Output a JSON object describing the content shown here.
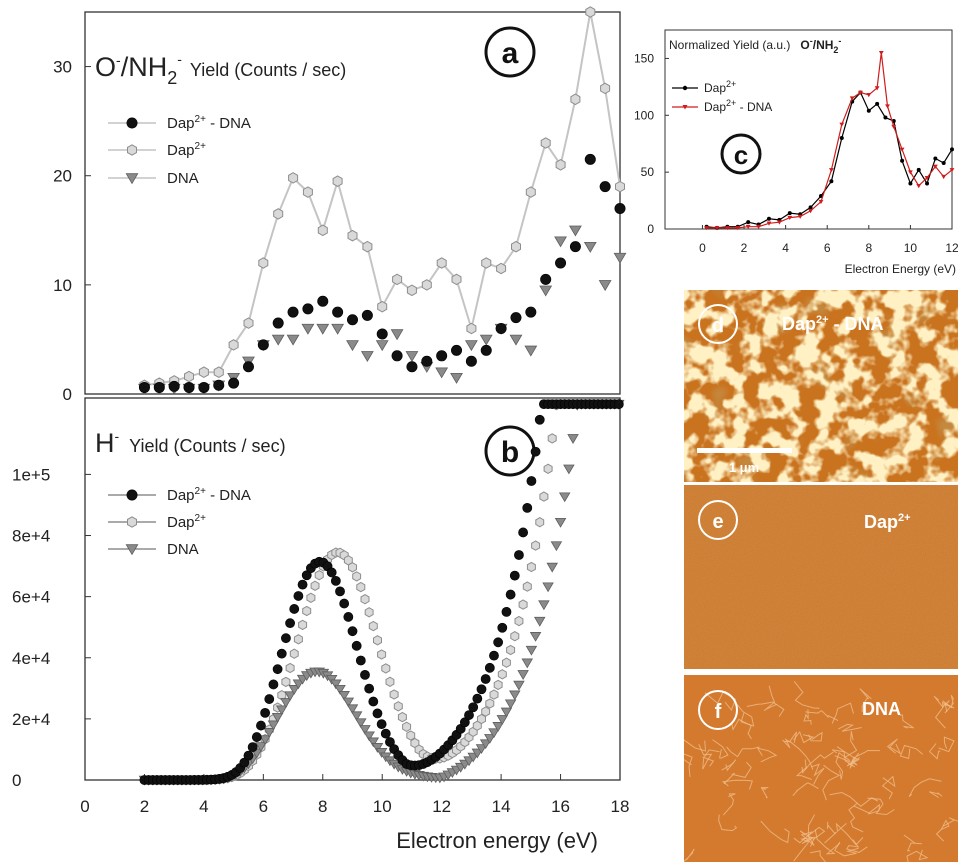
{
  "colors": {
    "dap_dna": "#111111",
    "dap": "#bdbdbd",
    "dna": "#8a8a8a",
    "inset_dap": "#000000",
    "inset_dap_dna": "#d01c1c",
    "afm_d": "#c9731f",
    "afm_e": "#d9873a",
    "afm_f": "#d37a2f"
  },
  "chart_data": [
    {
      "type": "scatter",
      "panel": "a",
      "panel_label": "a",
      "title_main": "O",
      "title_sup1": "-",
      "title_mid": "/NH",
      "title_sub": "2",
      "title_sup2": "-",
      "title_rest": "Yield (Counts / sec)",
      "ylim": [
        0,
        35
      ],
      "yticks": [
        0,
        10,
        20,
        30
      ],
      "xlim": [
        0,
        18
      ],
      "legend": [
        {
          "base": "Dap",
          "sup": "2+",
          "suffix": " - DNA"
        },
        {
          "base": "Dap",
          "sup": "2+",
          "suffix": ""
        },
        {
          "base": "DNA",
          "sup": "",
          "suffix": ""
        }
      ],
      "series": [
        {
          "name": "Dap2+ - DNA",
          "points": [
            [
              2.0,
              0.6
            ],
            [
              2.5,
              0.6
            ],
            [
              3.0,
              0.7
            ],
            [
              3.5,
              0.6
            ],
            [
              4.0,
              0.6
            ],
            [
              4.5,
              0.8
            ],
            [
              5.0,
              1.0
            ],
            [
              5.5,
              2.5
            ],
            [
              6.0,
              4.5
            ],
            [
              6.5,
              6.5
            ],
            [
              7.0,
              7.5
            ],
            [
              7.5,
              7.8
            ],
            [
              8.0,
              8.5
            ],
            [
              8.5,
              7.5
            ],
            [
              9.0,
              6.8
            ],
            [
              9.5,
              7.2
            ],
            [
              10.0,
              5.5
            ],
            [
              10.5,
              3.5
            ],
            [
              11.0,
              2.5
            ],
            [
              11.5,
              3.0
            ],
            [
              12.0,
              3.5
            ],
            [
              12.5,
              4.0
            ],
            [
              13.0,
              3.0
            ],
            [
              13.5,
              4.0
            ],
            [
              14.0,
              6.0
            ],
            [
              14.5,
              7.0
            ],
            [
              15.0,
              7.5
            ],
            [
              15.5,
              10.5
            ],
            [
              16.0,
              12.0
            ],
            [
              16.5,
              13.5
            ],
            [
              17.0,
              21.5
            ],
            [
              17.5,
              19.0
            ],
            [
              18.0,
              17.0
            ]
          ]
        },
        {
          "name": "Dap2+",
          "points": [
            [
              2.0,
              0.8
            ],
            [
              2.5,
              1.0
            ],
            [
              3.0,
              1.2
            ],
            [
              3.5,
              1.6
            ],
            [
              4.0,
              2.0
            ],
            [
              4.5,
              2.0
            ],
            [
              5.0,
              4.5
            ],
            [
              5.5,
              6.5
            ],
            [
              6.0,
              12.0
            ],
            [
              6.5,
              16.5
            ],
            [
              7.0,
              19.8
            ],
            [
              7.5,
              18.5
            ],
            [
              8.0,
              15.0
            ],
            [
              8.5,
              19.5
            ],
            [
              9.0,
              14.5
            ],
            [
              9.5,
              13.5
            ],
            [
              10.0,
              8.0
            ],
            [
              10.5,
              10.5
            ],
            [
              11.0,
              9.5
            ],
            [
              11.5,
              10.0
            ],
            [
              12.0,
              12.0
            ],
            [
              12.5,
              10.5
            ],
            [
              13.0,
              6.0
            ],
            [
              13.5,
              12.0
            ],
            [
              14.0,
              11.5
            ],
            [
              14.5,
              13.5
            ],
            [
              15.0,
              18.5
            ],
            [
              15.5,
              23.0
            ],
            [
              16.0,
              21.0
            ],
            [
              16.5,
              27.0
            ],
            [
              17.0,
              35.0
            ],
            [
              17.5,
              28.0
            ],
            [
              18.0,
              19.0
            ]
          ]
        },
        {
          "name": "DNA",
          "points": [
            [
              2.0,
              0.5
            ],
            [
              2.5,
              0.5
            ],
            [
              3.0,
              0.5
            ],
            [
              3.5,
              0.5
            ],
            [
              4.0,
              0.5
            ],
            [
              4.5,
              0.8
            ],
            [
              5.0,
              1.5
            ],
            [
              5.5,
              3.0
            ],
            [
              6.0,
              4.5
            ],
            [
              6.5,
              5.0
            ],
            [
              7.0,
              5.0
            ],
            [
              7.5,
              6.0
            ],
            [
              8.0,
              6.0
            ],
            [
              8.5,
              6.0
            ],
            [
              9.0,
              4.5
            ],
            [
              9.5,
              3.5
            ],
            [
              10.0,
              4.5
            ],
            [
              10.5,
              5.5
            ],
            [
              11.0,
              3.5
            ],
            [
              11.5,
              2.5
            ],
            [
              12.0,
              2.0
            ],
            [
              12.5,
              1.5
            ],
            [
              13.0,
              4.5
            ],
            [
              13.5,
              5.0
            ],
            [
              14.0,
              6.0
            ],
            [
              14.5,
              5.0
            ],
            [
              15.0,
              4.0
            ],
            [
              15.5,
              9.5
            ],
            [
              16.0,
              14.0
            ],
            [
              16.5,
              15.0
            ],
            [
              17.0,
              13.5
            ],
            [
              17.5,
              10.0
            ],
            [
              18.0,
              12.5
            ]
          ]
        }
      ]
    },
    {
      "type": "scatter",
      "panel": "b",
      "panel_label": "b",
      "title_main": "H",
      "title_sup1": "-",
      "title_rest": "Yield (Counts / sec)",
      "xlabel": "Electron energy (eV)",
      "xlim": [
        0,
        18
      ],
      "xticks": [
        0,
        2,
        4,
        6,
        8,
        10,
        12,
        14,
        16,
        18
      ],
      "ylim": [
        0,
        125000
      ],
      "yticks": [
        0,
        20000,
        40000,
        60000,
        80000,
        100000
      ],
      "ytick_labels": [
        "0",
        "2e+4",
        "4e+4",
        "6e+4",
        "8e+4",
        "1e+5"
      ],
      "legend": [
        {
          "base": "Dap",
          "sup": "2+",
          "suffix": " - DNA"
        },
        {
          "base": "Dap",
          "sup": "2+",
          "suffix": ""
        },
        {
          "base": "DNA",
          "sup": "",
          "suffix": ""
        }
      ],
      "series": [
        {
          "name": "Dap2+ - DNA",
          "curve": {
            "base": 500,
            "peak_mu": 7.9,
            "peak_amp": 71000,
            "peak_sigma": 1.25,
            "rise": 7500,
            "rise_scale": 1.6,
            "rise_start": 10.8,
            "cap": 123000
          }
        },
        {
          "name": "Dap2+",
          "curve": {
            "base": 500,
            "peak_mu": 8.5,
            "peak_amp": 74000,
            "peak_sigma": 1.35,
            "rise": 7500,
            "rise_scale": 1.6,
            "rise_start": 11.3,
            "cap": 123000
          }
        },
        {
          "name": "DNA",
          "curve": {
            "base": 500,
            "peak_mu": 7.8,
            "peak_amp": 35000,
            "peak_sigma": 1.3,
            "rise": 7500,
            "rise_scale": 1.6,
            "rise_start": 12.0,
            "cap": 123000
          }
        }
      ]
    },
    {
      "type": "line",
      "panel": "c",
      "panel_label": "c",
      "title": "Normalized Yield (a.u.)",
      "title_ion_1": "O",
      "title_ion_sup1": "-",
      "title_ion_2": "/NH",
      "title_ion_sub": "2",
      "title_ion_sup2": "-",
      "xlabel": "Electron Energy (eV)",
      "xlim": [
        -1.8,
        12
      ],
      "xticks": [
        0,
        2,
        4,
        6,
        8,
        10,
        12
      ],
      "ylim": [
        0,
        175
      ],
      "yticks": [
        0,
        50,
        100,
        150
      ],
      "legend": [
        {
          "base": "Dap",
          "sup": "2+",
          "suffix": ""
        },
        {
          "base": "Dap",
          "sup": "2+",
          "suffix": " - DNA"
        }
      ],
      "series": [
        {
          "name": "Dap2+",
          "points": [
            [
              0.2,
              2
            ],
            [
              0.7,
              1
            ],
            [
              1.2,
              2
            ],
            [
              1.7,
              2
            ],
            [
              2.2,
              6
            ],
            [
              2.7,
              4
            ],
            [
              3.2,
              9
            ],
            [
              3.7,
              8
            ],
            [
              4.2,
              14
            ],
            [
              4.7,
              13
            ],
            [
              5.2,
              19
            ],
            [
              5.7,
              29
            ],
            [
              6.2,
              42
            ],
            [
              6.7,
              80
            ],
            [
              7.2,
              112
            ],
            [
              7.6,
              120
            ],
            [
              8.0,
              104
            ],
            [
              8.4,
              110
            ],
            [
              8.8,
              98
            ],
            [
              9.2,
              95
            ],
            [
              9.6,
              60
            ],
            [
              10.0,
              40
            ],
            [
              10.4,
              52
            ],
            [
              10.8,
              40
            ],
            [
              11.2,
              62
            ],
            [
              11.6,
              58
            ],
            [
              12.0,
              70
            ]
          ]
        },
        {
          "name": "Dap2+ - DNA",
          "points": [
            [
              0.2,
              1
            ],
            [
              0.7,
              1
            ],
            [
              1.2,
              1
            ],
            [
              1.7,
              1
            ],
            [
              2.2,
              2
            ],
            [
              2.7,
              2
            ],
            [
              3.2,
              5
            ],
            [
              3.7,
              6
            ],
            [
              4.2,
              10
            ],
            [
              4.7,
              11
            ],
            [
              5.2,
              16
            ],
            [
              5.7,
              24
            ],
            [
              6.2,
              52
            ],
            [
              6.7,
              92
            ],
            [
              7.2,
              115
            ],
            [
              7.6,
              120
            ],
            [
              8.0,
              118
            ],
            [
              8.4,
              124
            ],
            [
              8.6,
              155
            ],
            [
              8.9,
              108
            ],
            [
              9.2,
              90
            ],
            [
              9.6,
              70
            ],
            [
              10.0,
              50
            ],
            [
              10.4,
              38
            ],
            [
              10.8,
              45
            ],
            [
              11.2,
              55
            ],
            [
              11.6,
              46
            ],
            [
              12.0,
              52
            ]
          ]
        }
      ]
    }
  ],
  "afm": [
    {
      "label": "d",
      "title_base": "Dap",
      "title_sup": "2+",
      "title_suffix": " - DNA",
      "scalebar": "1 μm"
    },
    {
      "label": "e",
      "title_base": "Dap",
      "title_sup": "2+",
      "title_suffix": ""
    },
    {
      "label": "f",
      "title_base": "DNA",
      "title_sup": "",
      "title_suffix": ""
    }
  ]
}
